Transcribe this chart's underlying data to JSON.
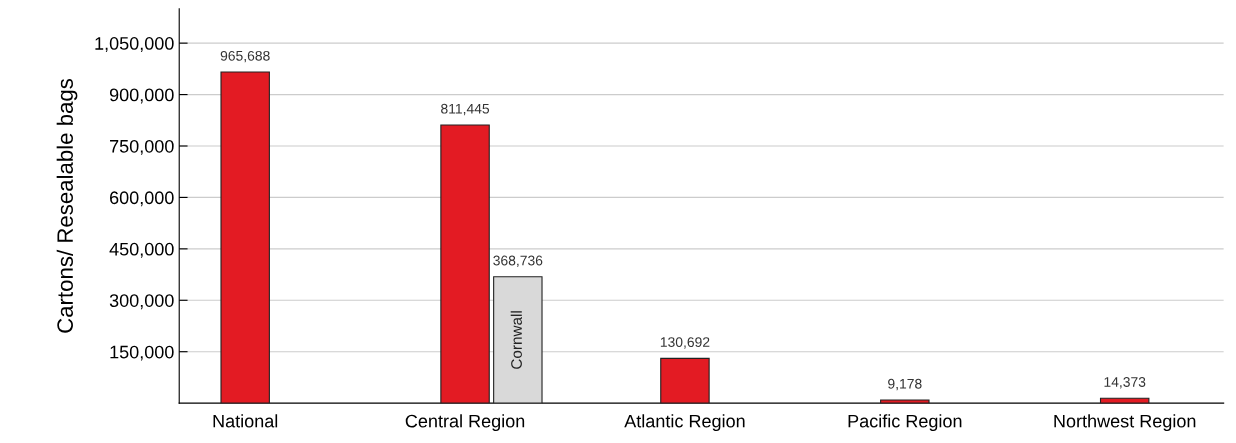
{
  "chart_data": {
    "type": "bar",
    "ylabel": "Cartons/ Resealable bags",
    "categories": [
      "National",
      "Central Region",
      "Atlantic Region",
      "Pacific Region",
      "Northwest Region"
    ],
    "series": [
      {
        "color": "#e31b23",
        "values": [
          965688,
          811445,
          130692,
          9178,
          14373
        ],
        "value_labels": [
          "965,688",
          "811,445",
          "130,692",
          "9,178",
          "14,373"
        ]
      },
      {
        "name": "Cornwall",
        "color": "#d9d9d9",
        "values": [
          null,
          368736,
          null,
          null,
          null
        ],
        "value_labels": [
          null,
          "368,736",
          null,
          null,
          null
        ]
      }
    ],
    "ylim": [
      0,
      1150000
    ],
    "yticks": [
      {
        "value": 150000,
        "label": "150,000"
      },
      {
        "value": 300000,
        "label": "300,000"
      },
      {
        "value": 450000,
        "label": "450,000"
      },
      {
        "value": 600000,
        "label": "600,000"
      },
      {
        "value": 750000,
        "label": "750,000"
      },
      {
        "value": 900000,
        "label": "900,000"
      },
      {
        "value": 1050000,
        "label": "1,050,000"
      }
    ],
    "grid": "y"
  }
}
